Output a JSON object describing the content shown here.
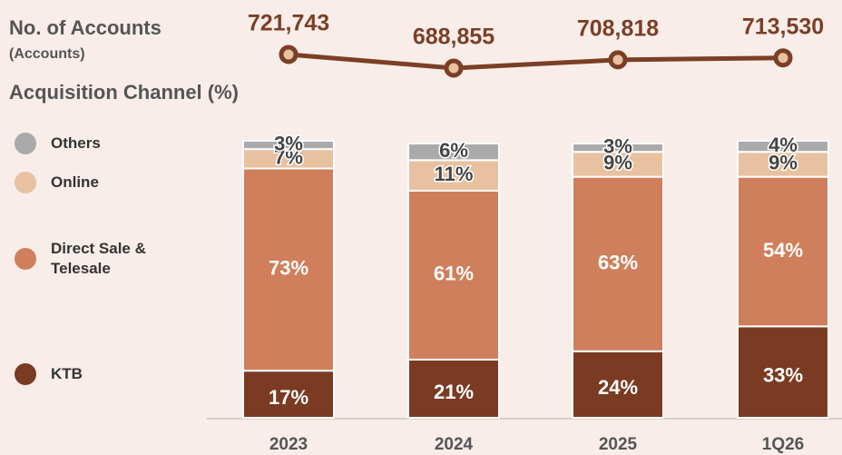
{
  "chart_data": [
    {
      "type": "line",
      "title": "No. of Accounts",
      "subtitle": "(Accounts)",
      "values": [
        721743,
        688855,
        708818,
        713530
      ],
      "value_labels": [
        "721,743",
        "688,855",
        "708,818",
        "713,530"
      ],
      "color": "#7b3f25",
      "ylim": [
        634000,
        787500
      ]
    },
    {
      "type": "stacked_bar",
      "title": "Acquisition Channel (%)",
      "categories": [
        "2023",
        "2024",
        "2025",
        "1Q26"
      ],
      "ylim": [
        0,
        100
      ],
      "series": [
        {
          "name": "KTB",
          "color": "#7a3b22",
          "values": [
            17,
            21,
            24,
            33
          ],
          "value_labels": [
            "17%",
            "21%",
            "24%",
            "33%"
          ]
        },
        {
          "name": "Direct Sale & Telesale",
          "color": "#cf7f5b",
          "values": [
            73,
            61,
            63,
            54
          ],
          "value_labels": [
            "73%",
            "61%",
            "63%",
            "54%"
          ]
        },
        {
          "name": "Online",
          "color": "#e8c1a0",
          "values": [
            7,
            11,
            9,
            9
          ],
          "value_labels": [
            "7%",
            "11%",
            "9%",
            "9%"
          ]
        },
        {
          "name": "Others",
          "color": "#aaaaaa",
          "values": [
            3,
            6,
            3,
            4
          ],
          "value_labels": [
            "3%",
            "6%",
            "3%",
            "4%"
          ]
        }
      ]
    }
  ]
}
